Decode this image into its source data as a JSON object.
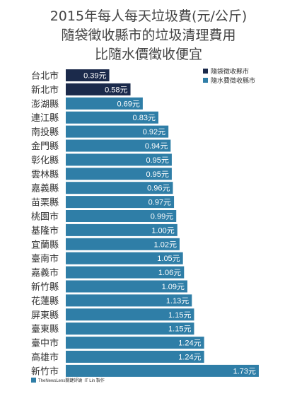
{
  "title_lines": [
    "2015年每人每天垃圾費(元/公斤)",
    "隨袋徵收縣市的垃圾清理費用",
    "比隨水價徵收便宜"
  ],
  "footer": {
    "logo_text": "TheNewsLens關鍵評論",
    "credit": "IT Lin 製作"
  },
  "colors": {
    "bag": "#1b2a4b",
    "water": "#2f7ea7"
  },
  "chart_data": {
    "type": "bar",
    "orientation": "horizontal",
    "title": "2015年每人每天垃圾費(元/公斤) 隨袋徵收縣市的垃圾清理費用 比隨水價徵收便宜",
    "unit_suffix": "元",
    "legend": {
      "placement": "top-right",
      "entries": [
        {
          "key": "bag",
          "label": "隨袋徵收縣市"
        },
        {
          "key": "water",
          "label": "隨水費徵收縣市"
        }
      ]
    },
    "categories": [
      "台北市",
      "新北市",
      "澎湖縣",
      "連江縣",
      "南投縣",
      "金門縣",
      "彰化縣",
      "雲林縣",
      "嘉義縣",
      "苗栗縣",
      "桃園市",
      "基隆市",
      "宜蘭縣",
      "臺南市",
      "嘉義市",
      "新竹縣",
      "花蓮縣",
      "屏東縣",
      "臺東縣",
      "臺中市",
      "高雄市",
      "新竹市"
    ],
    "values": [
      0.39,
      0.58,
      0.69,
      0.83,
      0.92,
      0.94,
      0.95,
      0.95,
      0.96,
      0.97,
      0.99,
      1.0,
      1.02,
      1.05,
      1.06,
      1.09,
      1.13,
      1.15,
      1.15,
      1.24,
      1.24,
      1.73
    ],
    "value_labels": [
      "0.39元",
      "0.58元",
      "0.69元",
      "0.83元",
      "0.92元",
      "0.94元",
      "0.95元",
      "0.95元",
      "0.96元",
      "0.97元",
      "0.99元",
      "1.00元",
      "1.02元",
      "1.05元",
      "1.06元",
      "1.09元",
      "1.13元",
      "1.15元",
      "1.15元",
      "1.24元",
      "1.24元",
      "1.73元"
    ],
    "series_key": [
      "bag",
      "bag",
      "water",
      "water",
      "water",
      "water",
      "water",
      "water",
      "water",
      "water",
      "water",
      "water",
      "water",
      "water",
      "water",
      "water",
      "water",
      "water",
      "water",
      "water",
      "water",
      "water"
    ],
    "xlim": [
      0,
      1.73
    ],
    "grid": false
  }
}
